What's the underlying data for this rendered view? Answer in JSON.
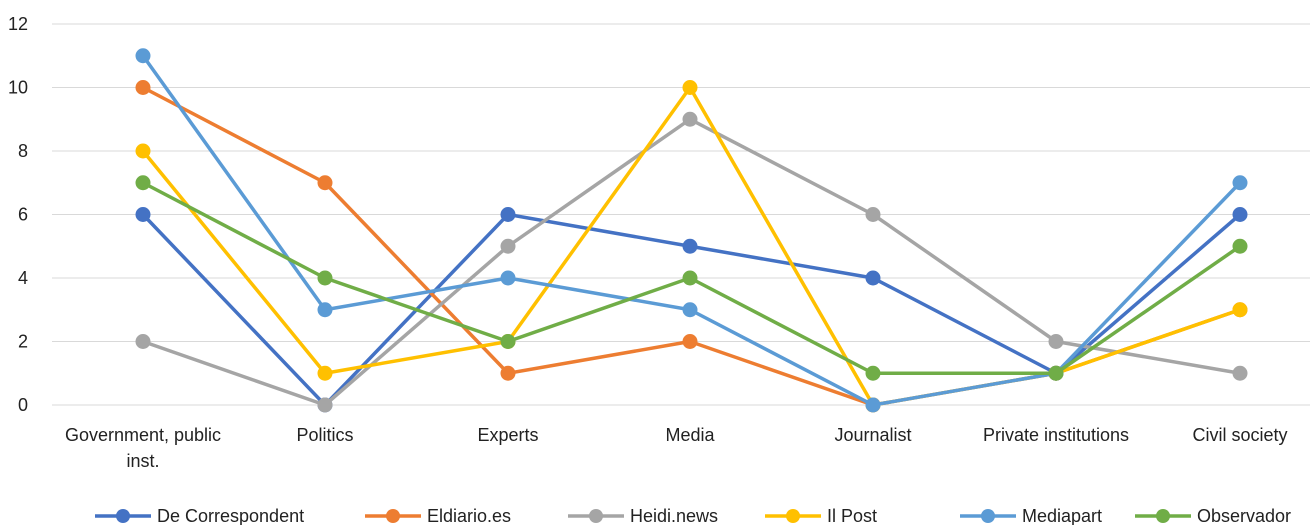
{
  "chart_data": {
    "type": "line",
    "title": "",
    "xlabel": "",
    "ylabel": "",
    "categories": [
      [
        "Government, public",
        "inst."
      ],
      [
        "Politics"
      ],
      [
        "Experts"
      ],
      [
        "Media"
      ],
      [
        "Journalist"
      ],
      [
        "Private institutions"
      ],
      [
        "Civil society"
      ]
    ],
    "y_ticks": [
      "0",
      "2",
      "4",
      "6",
      "8",
      "10",
      "12"
    ],
    "ylim": [
      0,
      12
    ],
    "grid": "horizontal",
    "legend_position": "bottom",
    "series": [
      {
        "name": "De Correspondent",
        "color": "#4472c4",
        "values": [
          6,
          0,
          6,
          5,
          4,
          1,
          6
        ]
      },
      {
        "name": "Eldiario.es",
        "color": "#ed7d31",
        "values": [
          10,
          7,
          1,
          2,
          0,
          1,
          3
        ]
      },
      {
        "name": "Heidi.news",
        "color": "#a5a5a5",
        "values": [
          2,
          0,
          5,
          9,
          6,
          2,
          1
        ]
      },
      {
        "name": "Il Post",
        "color": "#ffc000",
        "values": [
          8,
          1,
          2,
          10,
          0,
          1,
          3
        ]
      },
      {
        "name": "Mediapart",
        "color": "#5b9bd5",
        "values": [
          11,
          3,
          4,
          3,
          0,
          1,
          7
        ]
      },
      {
        "name": "Observador",
        "color": "#70ad47",
        "values": [
          7,
          4,
          2,
          4,
          1,
          1,
          5
        ]
      }
    ]
  }
}
